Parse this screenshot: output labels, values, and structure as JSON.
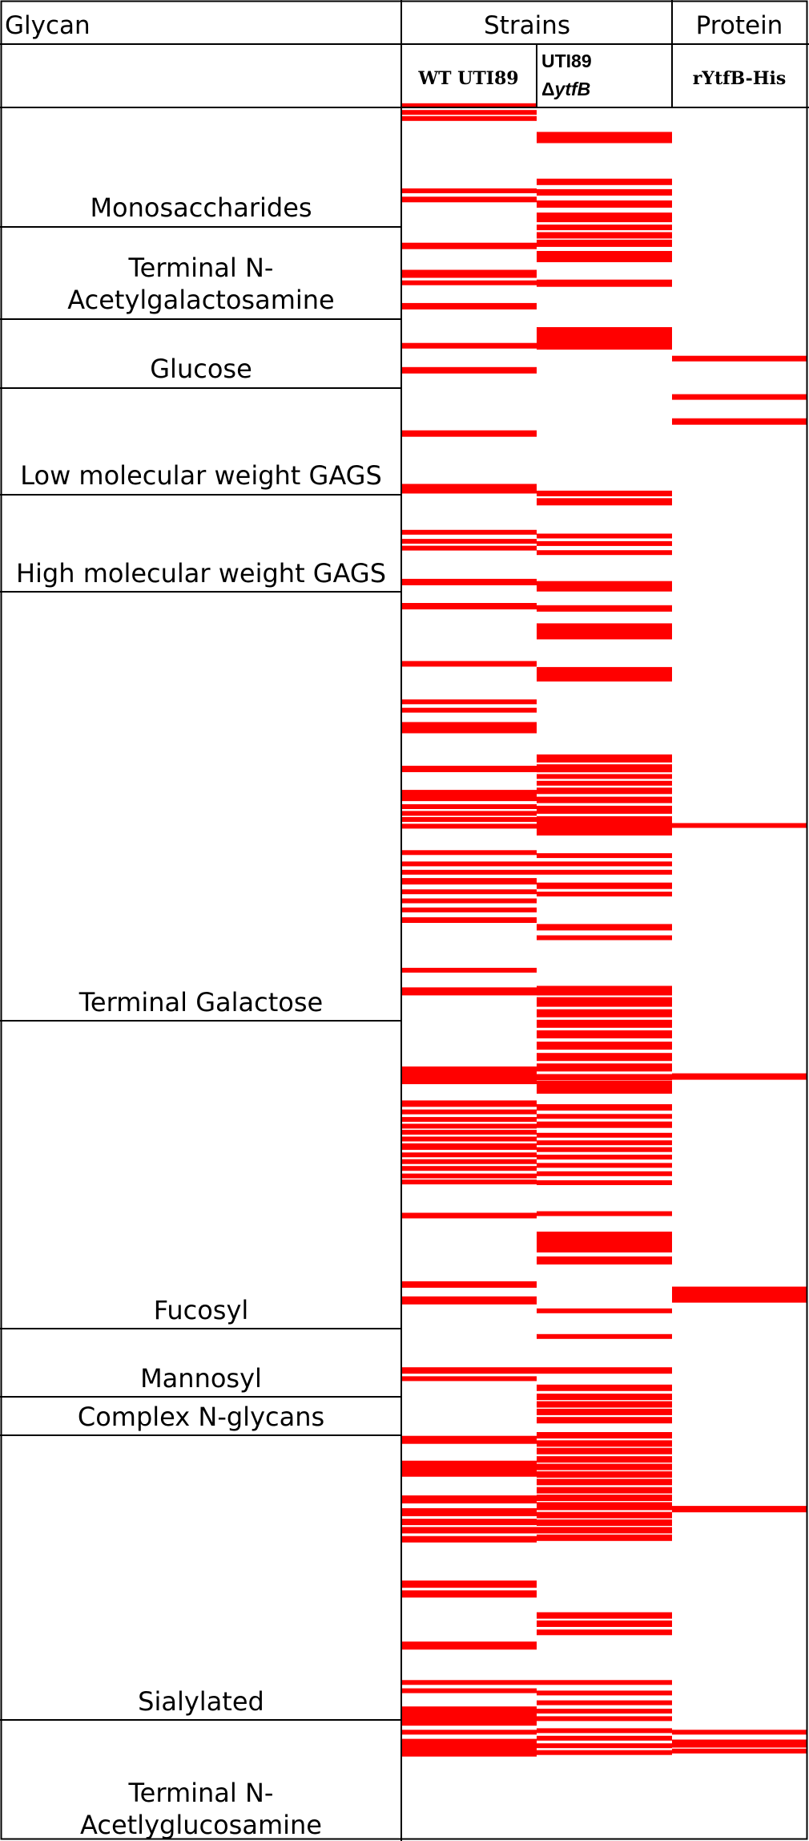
{
  "header": {
    "glycan": "Glycan",
    "strains": "Strains",
    "protein": "Protein"
  },
  "columns": {
    "wt": "WT UTI89",
    "mutant_line1": "UTI89",
    "mutant_prefix": "Δ",
    "mutant_italic": "ytfB",
    "protein": "rYtfB-His"
  },
  "colors": {
    "hit": "#ff0000",
    "line": "#000000"
  },
  "categories": [
    {
      "key": "mono",
      "lines": [
        "Monosaccharides"
      ]
    },
    {
      "key": "galnac",
      "lines": [
        "Terminal N-",
        "Acetylgalactosamine"
      ]
    },
    {
      "key": "glucose",
      "lines": [
        "Glucose"
      ]
    },
    {
      "key": "lmw",
      "lines": [
        "Low molecular weight GAGS"
      ]
    },
    {
      "key": "hmw",
      "lines": [
        "High molecular weight GAGS"
      ]
    },
    {
      "key": "gal",
      "lines": [
        "Terminal Galactose"
      ]
    },
    {
      "key": "fuc",
      "lines": [
        "Fucosyl"
      ]
    },
    {
      "key": "man",
      "lines": [
        "Mannosyl"
      ]
    },
    {
      "key": "cng",
      "lines": [
        "Complex N-glycans"
      ]
    },
    {
      "key": "sia",
      "lines": [
        "Sialylated"
      ]
    },
    {
      "key": "glcnac",
      "lines": [
        "Terminal N-",
        "Acetlyglucosamine"
      ]
    }
  ]
}
